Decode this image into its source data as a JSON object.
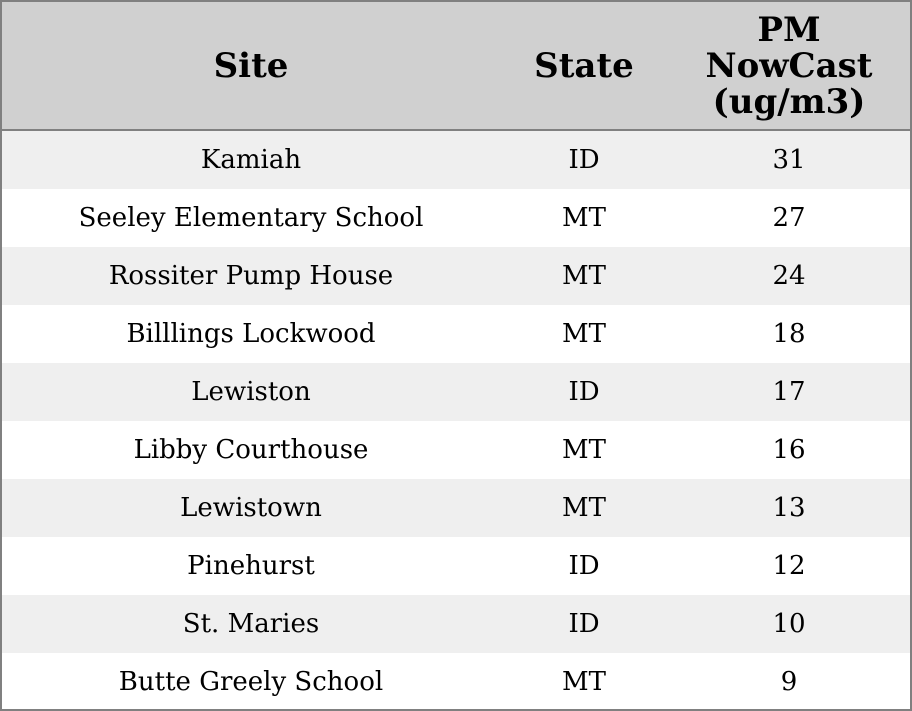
{
  "table": {
    "header": [
      "Site",
      "State",
      [
        "PM",
        "NowCast",
        "(ug/m3)"
      ]
    ],
    "rows": [
      [
        "Kamiah",
        "ID",
        31
      ],
      [
        "Seeley Elementary School",
        "MT",
        27
      ],
      [
        "Rossiter Pump House",
        "MT",
        24
      ],
      [
        "Billlings Lockwood",
        "MT",
        18
      ],
      [
        "Lewiston",
        "ID",
        17
      ],
      [
        "Libby Courthouse",
        "MT",
        16
      ],
      [
        "Lewistown",
        "MT",
        13
      ],
      [
        "Pinehurst",
        "ID",
        12
      ],
      [
        "St. Maries",
        "ID",
        10
      ],
      [
        "Butte Greely School",
        "MT",
        9
      ]
    ]
  }
}
